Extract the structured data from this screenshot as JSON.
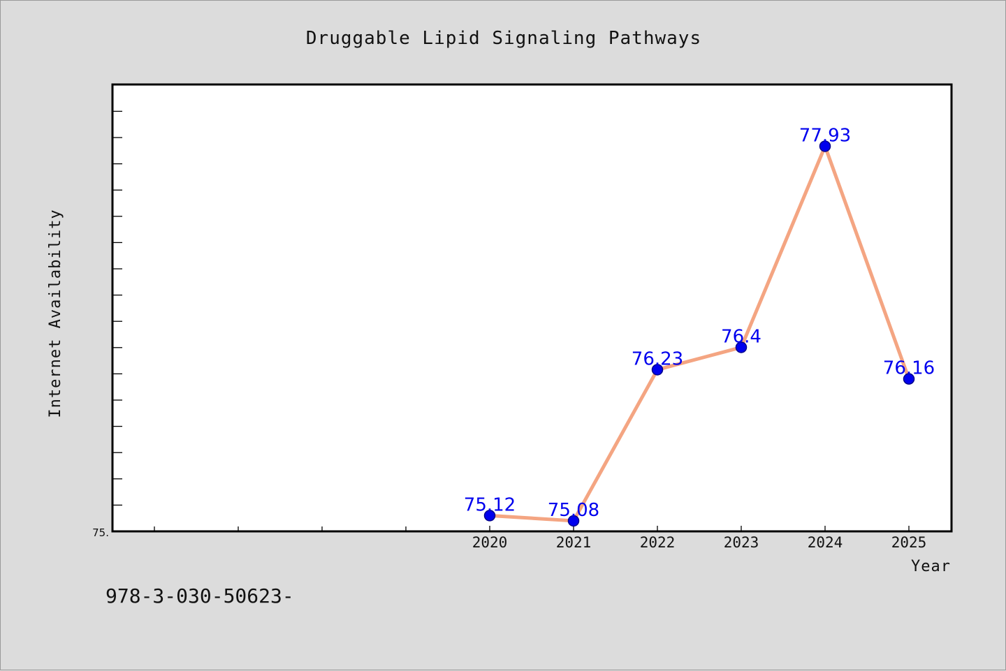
{
  "chart_data": {
    "type": "line",
    "title": "Druggable Lipid Signaling Pathways",
    "xlabel": "Year",
    "ylabel": "Internet Availability",
    "x": [
      "2020",
      "2021",
      "2022",
      "2023",
      "2024",
      "2025"
    ],
    "values": [
      75.12,
      75.08,
      76.23,
      76.4,
      77.93,
      76.16
    ],
    "data_labels": [
      "75.12",
      "75.08",
      "76.23",
      "76.4",
      "77.93",
      "76.16"
    ],
    "y_tick_labels": [
      "75."
    ],
    "ylim": [
      75.0,
      78.4
    ],
    "grid": false,
    "line_color": "#f4a582",
    "marker_color": "#0000ee",
    "label_color": "#0000ee",
    "background_color": "#dcdcdc",
    "plot_background_color": "#ffffff"
  },
  "footer": {
    "text": "978-3-030-50623-"
  }
}
